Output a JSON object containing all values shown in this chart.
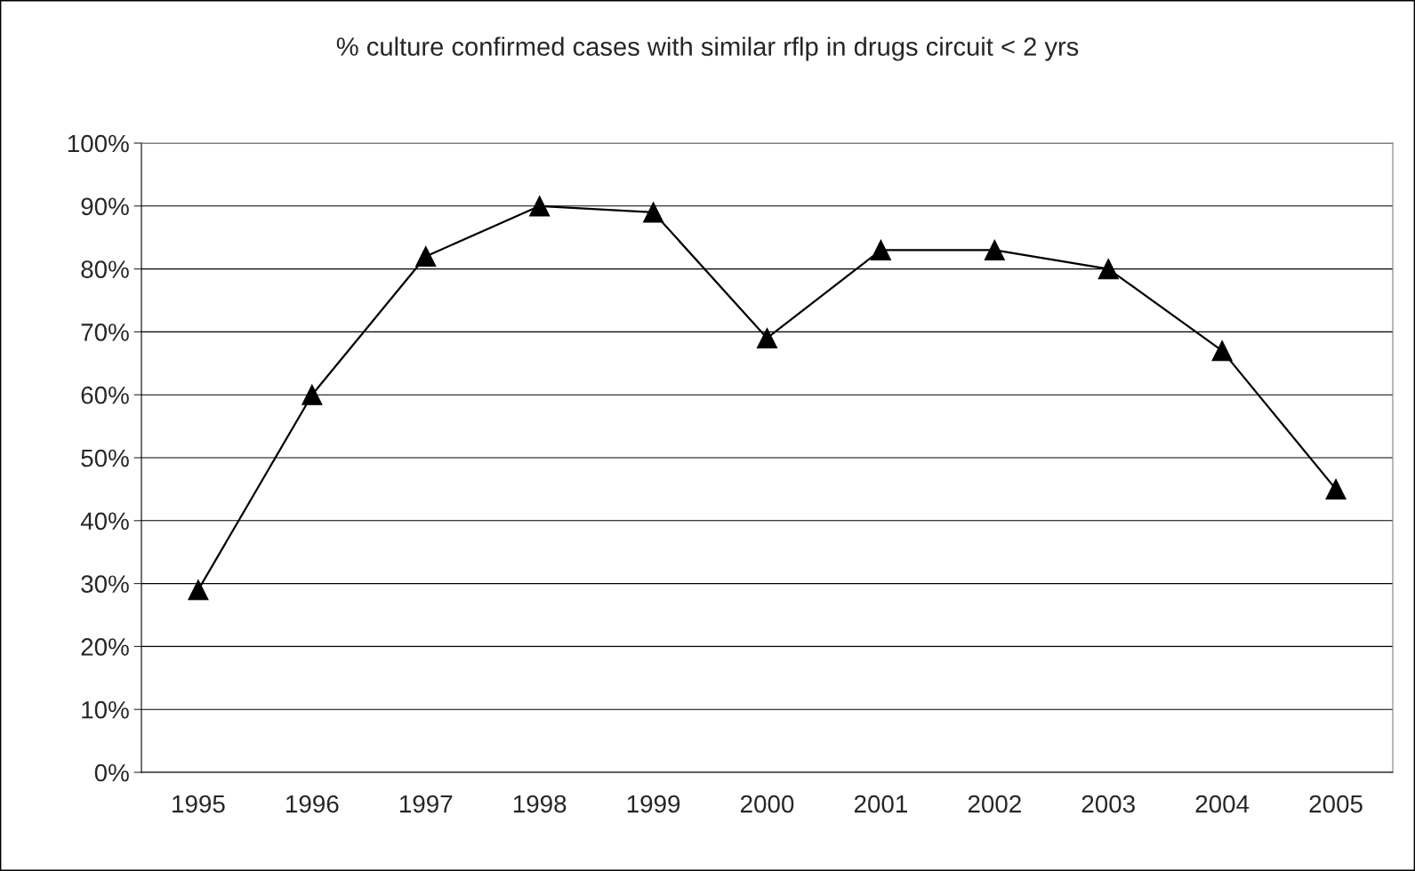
{
  "chart_data": {
    "type": "line",
    "title": "% culture confirmed cases with similar rflp in drugs circuit < 2 yrs",
    "categories": [
      "1995",
      "1996",
      "1997",
      "1998",
      "1999",
      "2000",
      "2001",
      "2002",
      "2003",
      "2004",
      "2005"
    ],
    "series": [
      {
        "color": "#000000",
        "values": [
          29,
          60,
          82,
          90,
          89,
          69,
          83,
          83,
          80,
          67,
          45
        ]
      }
    ],
    "ylim": [
      0,
      100
    ],
    "yticks": [
      {
        "value": 0,
        "label": "0%"
      },
      {
        "value": 10,
        "label": "10%"
      },
      {
        "value": 20,
        "label": "20%"
      },
      {
        "value": 30,
        "label": "30%"
      },
      {
        "value": 40,
        "label": "40%"
      },
      {
        "value": 50,
        "label": "50%"
      },
      {
        "value": 60,
        "label": "60%"
      },
      {
        "value": 70,
        "label": "70%"
      },
      {
        "value": 80,
        "label": "80%"
      },
      {
        "value": 90,
        "label": "90%"
      },
      {
        "value": 100,
        "label": "100%"
      }
    ],
    "grid": "y",
    "marker": "triangle",
    "line_style": "solid"
  }
}
